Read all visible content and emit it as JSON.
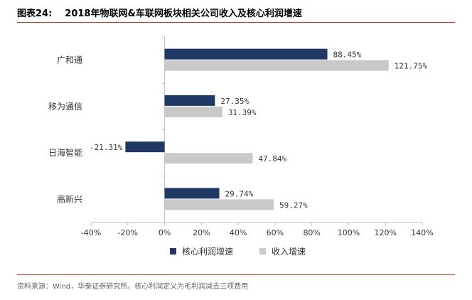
{
  "figure": {
    "label": "图表24:",
    "title": "2018年物联网&车联网板块相关公司收入及核心利润增速"
  },
  "source": "资料来源：Wind，华泰证券研究所。核心利润定义为毛利润减去三项费用",
  "colors": {
    "core_profit": "#1f3864",
    "revenue": "#c9c9c9",
    "axis": "#bfbfbf",
    "title_rule": "#c0392b"
  },
  "chart_data": {
    "type": "bar",
    "orientation": "horizontal",
    "categories": [
      "广和通",
      "移为通信",
      "日海智能",
      "高新兴"
    ],
    "series": [
      {
        "name": "核心利润增速",
        "values": [
          88.45,
          27.35,
          -21.31,
          29.74
        ],
        "labels": [
          "88.45%",
          "27.35%",
          "-21.31%",
          "29.74%"
        ]
      },
      {
        "name": "收入增速",
        "values": [
          121.75,
          31.39,
          47.84,
          59.27
        ],
        "labels": [
          "121.75%",
          "31.39%",
          "47.84%",
          "59.27%"
        ]
      }
    ],
    "xlim": [
      -40,
      140
    ],
    "xticks": [
      -40,
      -20,
      0,
      20,
      40,
      60,
      80,
      100,
      120,
      140
    ],
    "xtick_labels": [
      "-40%",
      "-20%",
      "0%",
      "20%",
      "40%",
      "60%",
      "80%",
      "100%",
      "120%",
      "140%"
    ],
    "legend_position": "bottom",
    "grid": false
  }
}
